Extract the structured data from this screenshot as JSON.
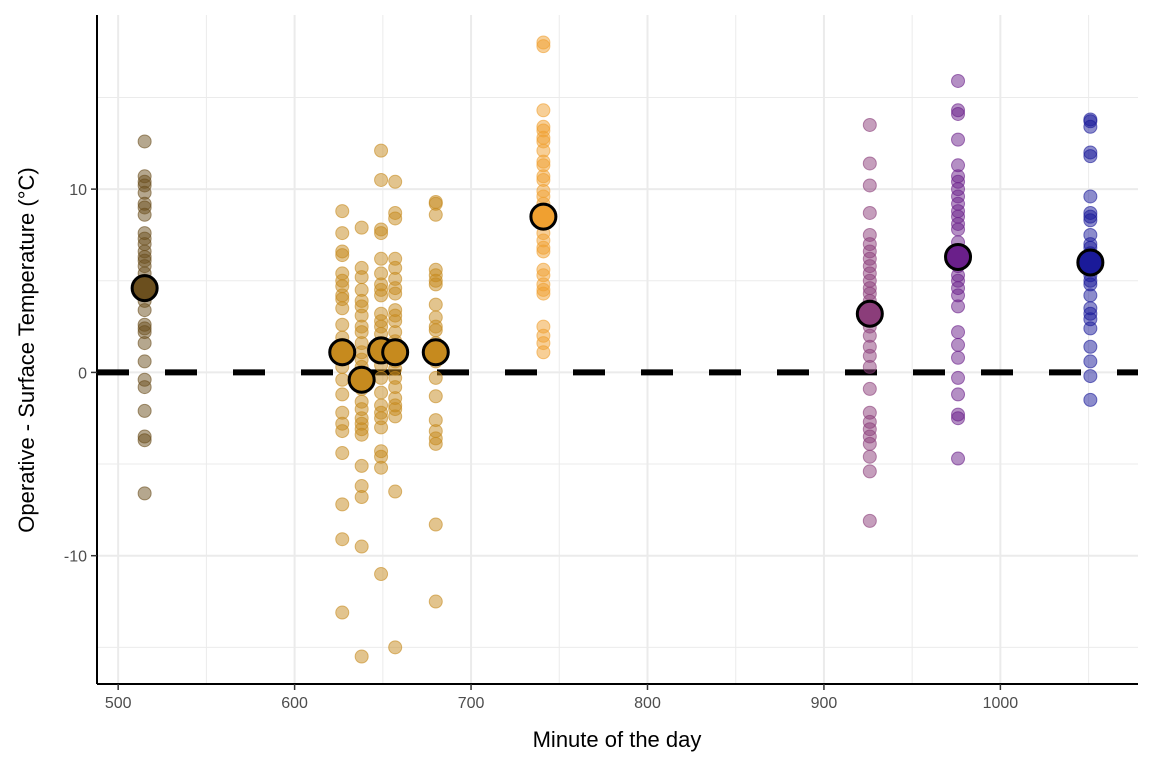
{
  "chart_data": {
    "type": "scatter",
    "title": "",
    "xlabel": "Minute of the day",
    "ylabel": "Operative - Surface Temperature (°C)",
    "xlim": [
      488,
      1078
    ],
    "ylim": [
      -17,
      19.5
    ],
    "x_ticks": [
      500,
      600,
      700,
      800,
      900,
      1000
    ],
    "x_tick_labels": [
      "500",
      "600",
      "700",
      "800",
      "900",
      "1000"
    ],
    "y_ticks": [
      -10,
      0,
      10
    ],
    "y_tick_labels": [
      "-10",
      "0",
      "10"
    ],
    "grid": true,
    "reference_line": {
      "y": 0,
      "style": "dashed",
      "color": "#000000"
    },
    "groups": [
      {
        "x": 515,
        "color": "#6b4f1e",
        "mean": 4.6,
        "values": [
          12.6,
          10.7,
          10.4,
          10.2,
          9.8,
          9.2,
          9.0,
          8.6,
          7.6,
          7.3,
          7.0,
          6.6,
          6.3,
          6.1,
          5.8,
          5.4,
          5.0,
          4.6,
          4.2,
          3.9,
          3.4,
          2.6,
          2.4,
          2.2,
          1.6,
          0.6,
          -0.4,
          -0.8,
          -2.1,
          -3.5,
          -3.7,
          -6.6
        ]
      },
      {
        "x": 627,
        "color": "#c68a1e",
        "mean": 1.1,
        "values": [
          8.8,
          7.6,
          6.6,
          6.4,
          5.4,
          5.0,
          4.7,
          4.2,
          4.0,
          3.5,
          2.6,
          1.9,
          1.5,
          1.1,
          0.7,
          0.3,
          -0.4,
          -1.2,
          -2.2,
          -2.8,
          -3.2,
          -4.4,
          -7.2,
          -9.1,
          -13.1
        ]
      },
      {
        "x": 638,
        "color": "#c68a1e",
        "mean": -0.4,
        "values": [
          7.9,
          5.7,
          5.2,
          4.5,
          3.9,
          3.6,
          3.1,
          2.5,
          2.2,
          1.6,
          1.1,
          0.7,
          0.3,
          -0.4,
          -0.9,
          -1.6,
          -2.0,
          -2.5,
          -2.8,
          -3.1,
          -3.4,
          -5.1,
          -6.2,
          -6.8,
          -9.5,
          -15.5
        ]
      },
      {
        "x": 649,
        "color": "#c68a1e",
        "mean": 1.2,
        "values": [
          12.1,
          10.5,
          7.8,
          7.6,
          6.2,
          5.4,
          4.8,
          4.5,
          4.2,
          3.2,
          2.8,
          2.5,
          2.1,
          1.6,
          1.2,
          0.9,
          0.4,
          -0.3,
          -1.1,
          -1.8,
          -2.2,
          -2.5,
          -3.0,
          -4.3,
          -4.6,
          -5.2,
          -11.0
        ]
      },
      {
        "x": 657,
        "color": "#c68a1e",
        "mean": 1.1,
        "values": [
          10.4,
          8.7,
          8.4,
          6.2,
          5.7,
          5.1,
          4.6,
          4.3,
          3.4,
          3.1,
          2.8,
          2.2,
          1.7,
          1.1,
          0.6,
          0.2,
          -0.3,
          -0.8,
          -1.4,
          -1.8,
          -2.0,
          -2.4,
          -6.5,
          -15.0
        ]
      },
      {
        "x": 680,
        "color": "#c68a1e",
        "mean": 1.1,
        "values": [
          9.3,
          9.2,
          8.6,
          5.6,
          5.3,
          5.0,
          4.8,
          3.7,
          3.0,
          2.5,
          2.3,
          1.6,
          1.1,
          0.6,
          -0.3,
          -1.3,
          -2.6,
          -3.2,
          -3.6,
          -3.9,
          -8.3,
          -12.5
        ]
      },
      {
        "x": 741,
        "color": "#f0a030",
        "mean": 8.5,
        "values": [
          18.0,
          17.8,
          14.3,
          13.4,
          13.2,
          12.8,
          12.6,
          12.1,
          11.5,
          11.3,
          10.7,
          10.5,
          9.9,
          9.6,
          9.2,
          8.8,
          8.5,
          8.1,
          7.6,
          7.2,
          6.8,
          6.6,
          5.6,
          5.3,
          4.8,
          4.5,
          4.3,
          2.5,
          2.0,
          1.6,
          1.1
        ]
      },
      {
        "x": 926,
        "color": "#8b3d7a",
        "mean": 3.2,
        "values": [
          13.5,
          11.4,
          10.2,
          8.7,
          7.5,
          7.0,
          6.6,
          6.2,
          5.8,
          5.4,
          5.0,
          4.6,
          4.3,
          3.9,
          3.5,
          3.0,
          2.5,
          2.0,
          1.4,
          0.9,
          0.3,
          -0.9,
          -2.2,
          -2.7,
          -3.1,
          -3.5,
          -3.9,
          -4.6,
          -5.4,
          -8.1
        ]
      },
      {
        "x": 976,
        "color": "#6a1f8a",
        "mean": 6.3,
        "values": [
          15.9,
          14.3,
          14.1,
          12.7,
          11.3,
          10.7,
          10.4,
          10.0,
          9.6,
          9.2,
          8.8,
          8.5,
          8.1,
          7.8,
          7.1,
          6.6,
          6.3,
          5.8,
          5.3,
          5.0,
          4.6,
          4.2,
          3.6,
          2.2,
          1.5,
          0.8,
          -0.3,
          -1.2,
          -2.3,
          -2.5,
          -4.7
        ]
      },
      {
        "x": 1051,
        "color": "#1a1a99",
        "mean": 6.0,
        "values": [
          13.8,
          13.7,
          13.4,
          12.0,
          11.8,
          9.6,
          8.7,
          8.5,
          8.3,
          7.5,
          7.0,
          6.8,
          6.5,
          6.2,
          6.0,
          5.7,
          5.3,
          5.0,
          4.8,
          4.2,
          3.5,
          3.2,
          2.9,
          2.4,
          1.4,
          0.6,
          -0.2,
          -1.5
        ]
      }
    ]
  }
}
